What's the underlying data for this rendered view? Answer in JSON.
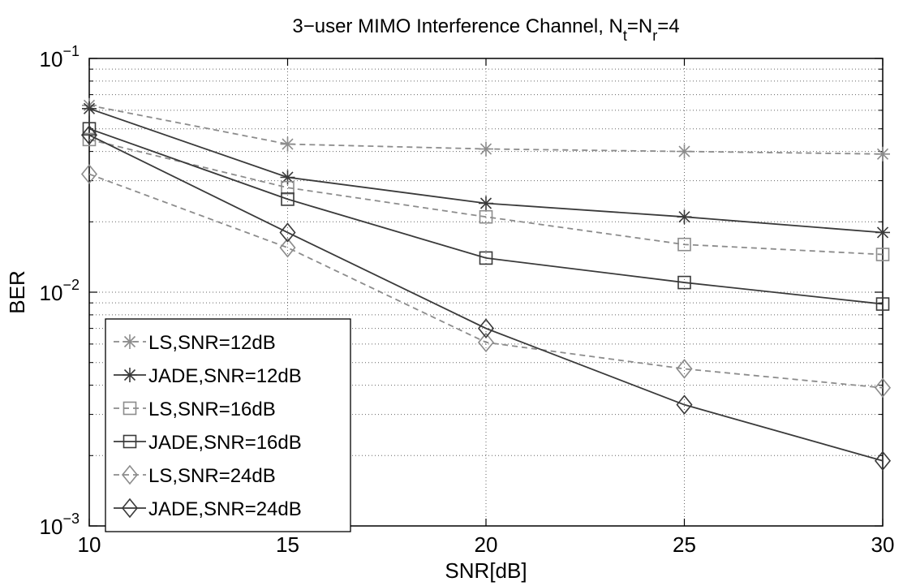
{
  "chart_data": {
    "type": "line",
    "title_main": "3−user MIMO Interference Channel, N",
    "title_sub1": "t",
    "title_mid": "=N",
    "title_sub2": "r",
    "title_end": "=4",
    "xlabel": "SNR[dB]",
    "ylabel": "BER",
    "x": [
      10,
      15,
      20,
      25,
      30
    ],
    "xlim": [
      10,
      30
    ],
    "ylim": [
      0.001,
      0.1
    ],
    "yscale": "log",
    "grid": true,
    "xticks": [
      "10",
      "15",
      "20",
      "25",
      "30"
    ],
    "yticks": [
      {
        "value": 0.1,
        "base": "10",
        "exp": "−1"
      },
      {
        "value": 0.01,
        "base": "10",
        "exp": "−2"
      },
      {
        "value": 0.001,
        "base": "10",
        "exp": "−3"
      }
    ],
    "legend_position": "lower-left",
    "series": [
      {
        "name": "LS,SNR=12dB",
        "values": [
          0.063,
          0.043,
          0.041,
          0.04,
          0.039
        ],
        "marker": "star",
        "dashed": true,
        "color": "#8c8c8c"
      },
      {
        "name": "JADE,SNR=12dB",
        "values": [
          0.061,
          0.031,
          0.024,
          0.021,
          0.018
        ],
        "marker": "star",
        "dashed": false,
        "color": "#3a3a3a"
      },
      {
        "name": "LS,SNR=16dB",
        "values": [
          0.045,
          0.028,
          0.021,
          0.016,
          0.0145
        ],
        "marker": "square",
        "dashed": true,
        "color": "#8c8c8c"
      },
      {
        "name": "JADE,SNR=16dB",
        "values": [
          0.05,
          0.025,
          0.014,
          0.011,
          0.0089
        ],
        "marker": "square",
        "dashed": false,
        "color": "#3a3a3a"
      },
      {
        "name": "LS,SNR=24dB",
        "values": [
          0.032,
          0.0155,
          0.0061,
          0.0047,
          0.0039
        ],
        "marker": "diamond",
        "dashed": true,
        "color": "#8c8c8c"
      },
      {
        "name": "JADE,SNR=24dB",
        "values": [
          0.047,
          0.018,
          0.007,
          0.0033,
          0.0019
        ],
        "marker": "diamond",
        "dashed": false,
        "color": "#3a3a3a"
      }
    ]
  }
}
